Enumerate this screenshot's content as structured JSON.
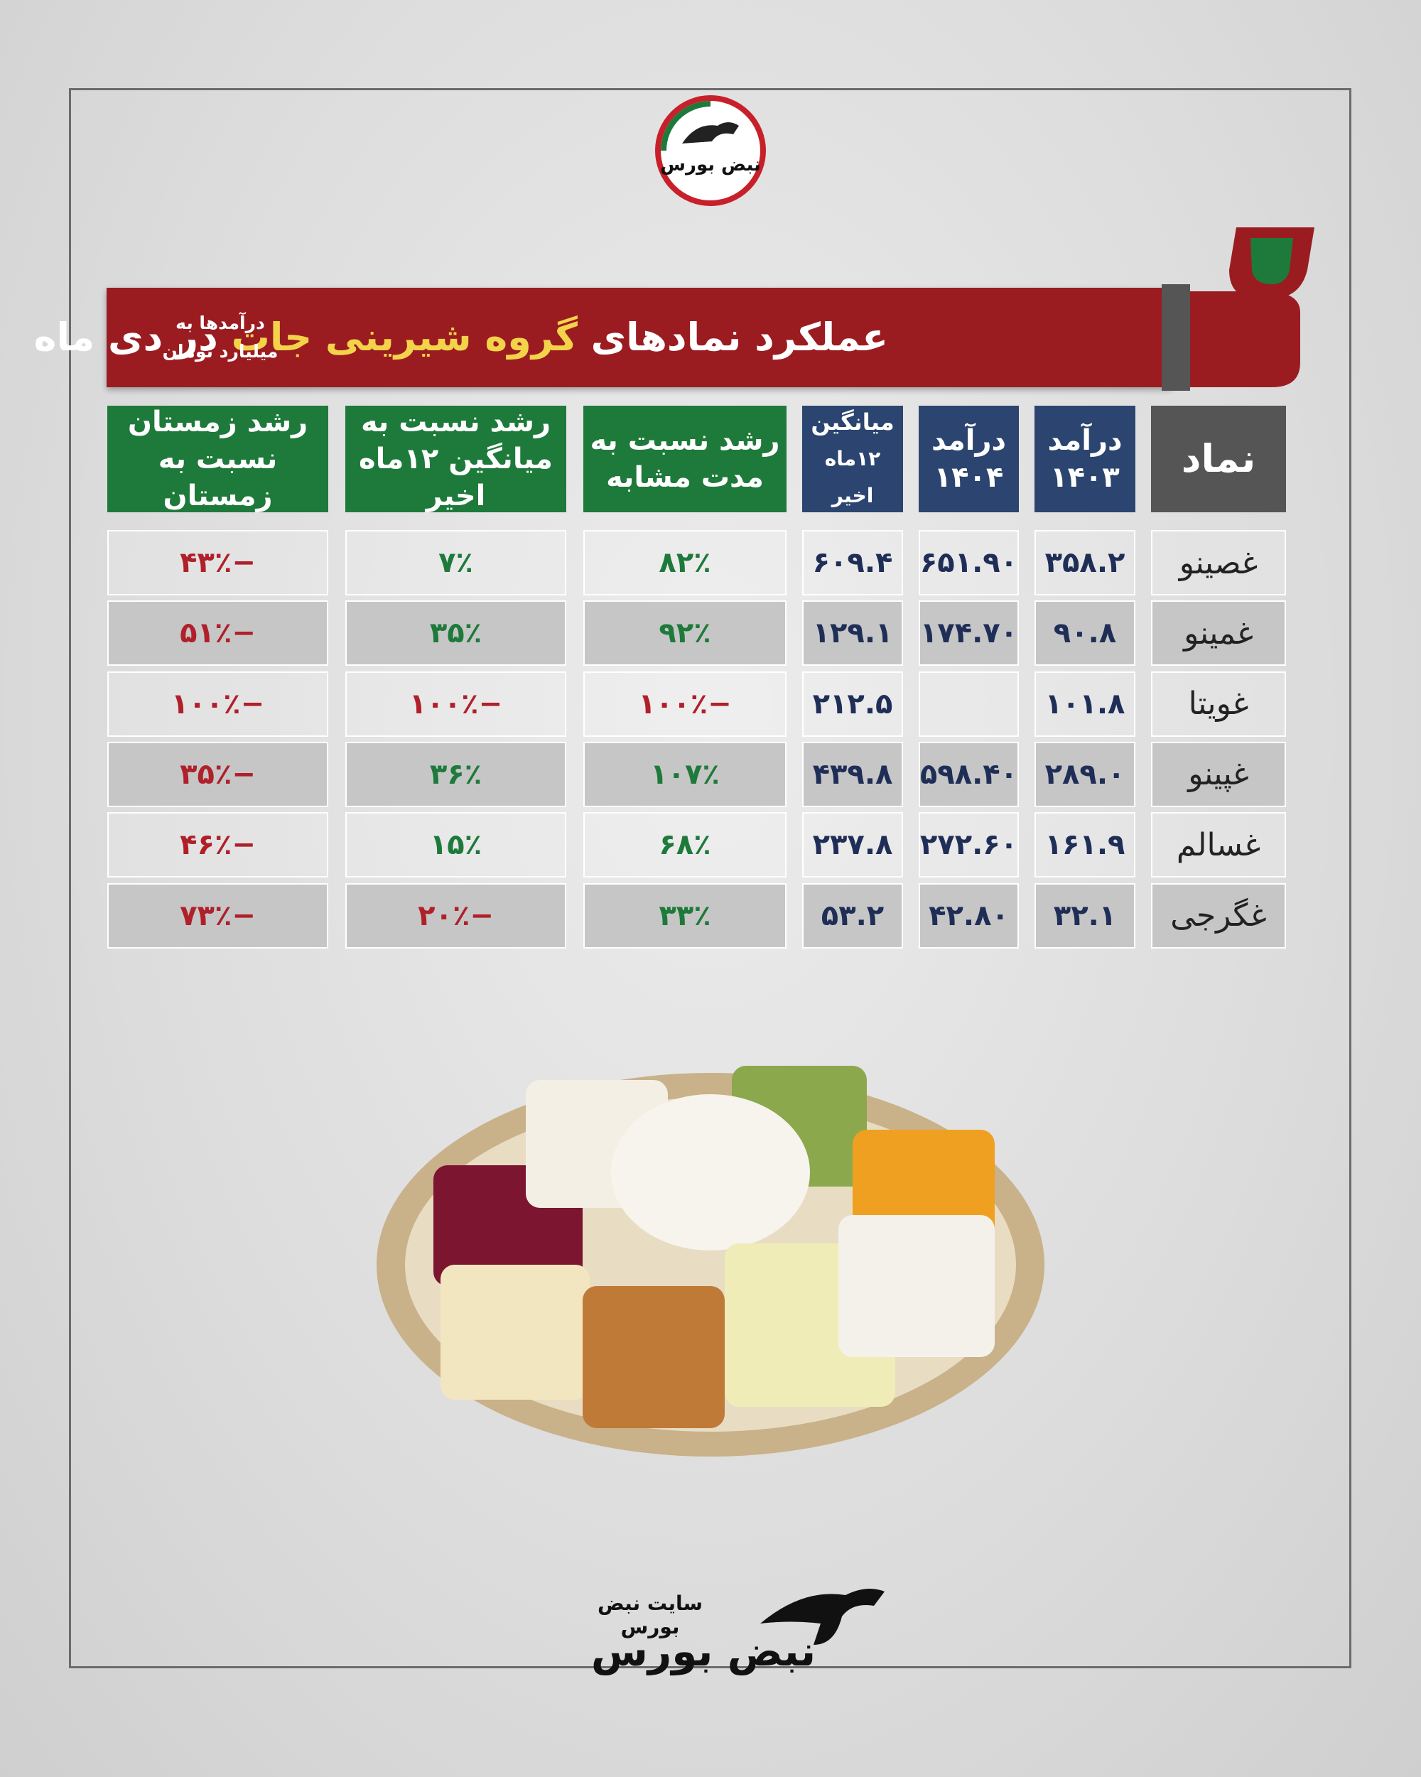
{
  "logo": {
    "text": "نبض بورس"
  },
  "header": {
    "title": [
      "عملکرد نمادهای",
      "گروه شیرینی جات",
      "در دی ماه"
    ],
    "note": [
      "درآمدها به",
      "میلیارد تومان"
    ]
  },
  "table": {
    "columns": [
      [
        "نماد"
      ],
      [
        "درآمد",
        "۱۴۰۳"
      ],
      [
        "درآمد",
        "۱۴۰۴"
      ],
      [
        "میانگین",
        "۱۲ماه اخیر"
      ],
      [
        "رشد نسبت به",
        "مدت مشابه"
      ],
      [
        "رشد نسبت به",
        "میانگین ۱۲ماه اخیر"
      ],
      [
        "رشد زمستان",
        "نسبت به زمستان"
      ]
    ],
    "rows": [
      [
        "غصینو",
        "۳۵۸.۲",
        "۶۵۱.۹۰",
        "۶۰۹.۴",
        "۸۲٪",
        "۷٪",
        "−۴۳٪"
      ],
      [
        "غمینو",
        "۹۰.۸",
        "۱۷۴.۷۰",
        "۱۲۹.۱",
        "۹۲٪",
        "۳۵٪",
        "−۵۱٪"
      ],
      [
        "غویتا",
        "۱۰۱.۸",
        null,
        "۲۱۲.۵",
        "−۱۰۰٪",
        "−۱۰۰٪",
        "−۱۰۰٪"
      ],
      [
        "غپینو",
        "۲۸۹.۰",
        "۵۹۸.۴۰",
        "۴۳۹.۸",
        "۱۰۷٪",
        "۳۶٪",
        "−۳۵٪"
      ],
      [
        "غسالم",
        "۱۶۱.۹",
        "۲۷۲.۶۰",
        "۲۳۷.۸",
        "۶۸٪",
        "۱۵٪",
        "−۴۶٪"
      ],
      [
        "غگرجی",
        "۳۲.۱",
        "۴۲.۸۰",
        "۵۳.۲",
        "۳۳٪",
        "−۲۰٪",
        "−۷۳٪"
      ]
    ]
  },
  "footer": {
    "site": "سایت نبض بورس",
    "brand": "نبض بورس"
  }
}
